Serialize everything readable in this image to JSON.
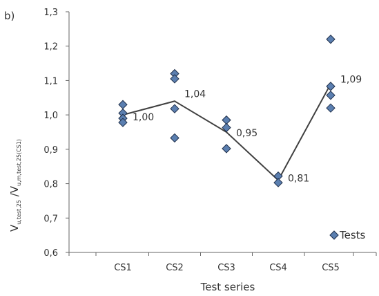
{
  "panel_label": "b)",
  "legend": {
    "label": "Tests"
  },
  "colors": {
    "marker_fill": "#5b7fb0",
    "marker_stroke": "#1f2f4a",
    "line": "#404040"
  },
  "chart_data": {
    "type": "scatter",
    "xlabel": "Test series",
    "ylabel": {
      "main": "V",
      "main_sub": "u,test,25",
      "sep": " /V",
      "sep_sub": "u,m,test,25(CS1)"
    },
    "ylim": [
      0.6,
      1.3
    ],
    "yticks": [
      0.6,
      0.7,
      0.8,
      0.9,
      1.0,
      1.1,
      1.2,
      1.3
    ],
    "ytick_labels": [
      "0,6",
      "0,7",
      "0,8",
      "0,9",
      "1,0",
      "1,1",
      "1,2",
      "1,3"
    ],
    "categories": [
      "CS1",
      "CS2",
      "CS3",
      "CS4",
      "CS5"
    ],
    "grid": false,
    "legend_position": "bottom-right",
    "series": [
      {
        "name": "Tests",
        "points": [
          {
            "category": "CS1",
            "values": [
              1.03,
              1.005,
              0.99,
              0.978
            ]
          },
          {
            "category": "CS2",
            "values": [
              1.12,
              1.105,
              1.018,
              0.933
            ]
          },
          {
            "category": "CS3",
            "values": [
              0.985,
              0.963,
              0.902
            ]
          },
          {
            "category": "CS4",
            "values": [
              0.822,
              0.803
            ]
          },
          {
            "category": "CS5",
            "values": [
              1.22,
              1.083,
              1.057,
              1.02
            ]
          }
        ]
      },
      {
        "type": "line",
        "values": [
          1.0,
          1.04,
          0.95,
          0.81,
          1.09
        ],
        "labels": [
          "1,00",
          "1,04",
          "0,95",
          "0,81",
          "1,09"
        ]
      }
    ]
  }
}
